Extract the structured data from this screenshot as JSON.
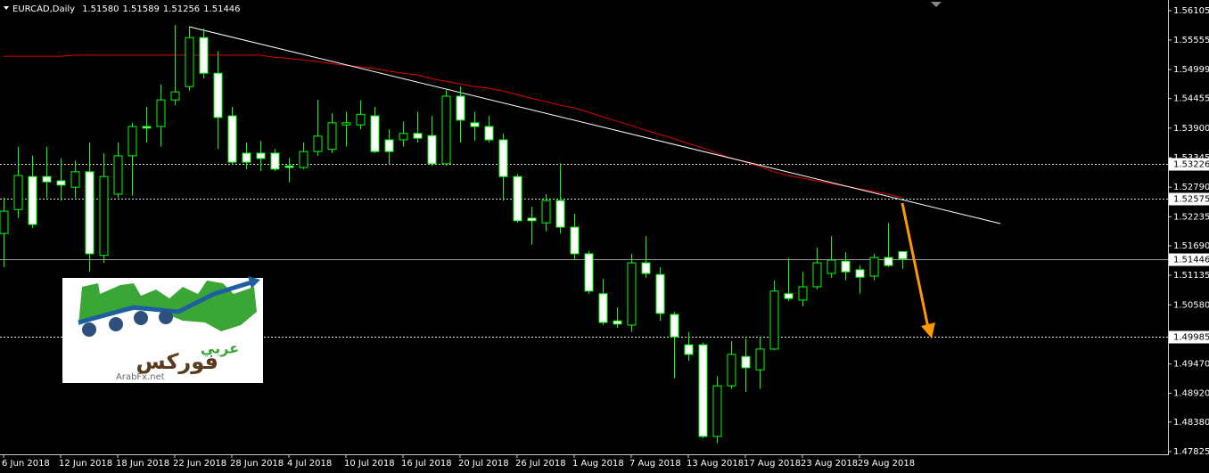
{
  "chart_data": {
    "type": "candlestick",
    "title": "EURCAD,Daily",
    "ohlc_labels": [
      "1.51580",
      "1.51589",
      "1.51256",
      "1.51446"
    ],
    "categories": [
      "6 Jun 2018",
      null,
      null,
      null,
      "12 Jun 2018",
      null,
      null,
      null,
      "18 Jun 2018",
      null,
      null,
      null,
      "22 Jun 2018",
      null,
      null,
      null,
      "28 Jun 2018",
      null,
      null,
      null,
      "4 Jul 2018",
      null,
      null,
      null,
      "10 Jul 2018",
      null,
      null,
      null,
      "16 Jul 2018",
      null,
      null,
      null,
      "20 Jul 2018",
      null,
      null,
      null,
      "26 Jul 2018",
      null,
      null,
      null,
      "1 Aug 2018",
      null,
      null,
      null,
      "7 Aug 2018",
      null,
      null,
      null,
      "13 Aug 2018",
      null,
      null,
      null,
      "17 Aug 2018",
      null,
      null,
      null,
      "23 Aug 2018",
      null,
      null,
      null,
      "29 Aug 2018",
      null,
      null,
      null
    ],
    "open": [
      1.5192,
      1.5237,
      1.5299,
      1.5299,
      1.5291,
      1.5279,
      1.5308,
      1.5151,
      1.5266,
      1.5338,
      1.5393,
      1.5393,
      1.5443,
      1.5468,
      1.556,
      1.5493,
      1.5413,
      1.5343,
      1.5343,
      1.5343,
      1.5319,
      1.5316,
      1.5346,
      1.535,
      1.5396,
      1.5396,
      1.5413,
      1.5368,
      1.5368,
      1.538,
      1.5376,
      1.5323,
      1.545,
      1.54,
      1.5393,
      1.5368,
      1.5299,
      1.5221,
      1.5212,
      1.5254,
      1.5204,
      1.5154,
      1.5079,
      1.5028,
      1.502,
      1.5137,
      1.5115,
      1.504,
      1.4983,
      1.4983,
      1.4811,
      1.4906,
      1.4961,
      1.4936,
      1.4975,
      1.5079,
      1.5067,
      1.5092,
      1.5117,
      1.514,
      1.5124,
      1.5112,
      1.5147,
      1.5158
    ],
    "high": [
      1.5259,
      1.5355,
      1.5338,
      1.5355,
      1.5333,
      1.5329,
      1.5363,
      1.5343,
      1.5363,
      1.54,
      1.543,
      1.5472,
      1.5584,
      1.558,
      1.5577,
      1.5534,
      1.543,
      1.5363,
      1.5366,
      1.5351,
      1.5334,
      1.5363,
      1.5443,
      1.5418,
      1.5421,
      1.5442,
      1.543,
      1.5388,
      1.5402,
      1.5421,
      1.5413,
      1.5463,
      1.5468,
      1.5421,
      1.5413,
      1.538,
      1.5304,
      1.5242,
      1.5266,
      1.5324,
      1.5229,
      1.5159,
      1.5107,
      1.5053,
      1.5154,
      1.5187,
      1.5129,
      1.5045,
      1.5007,
      1.4987,
      1.4924,
      1.499,
      1.4995,
      1.4998,
      1.5104,
      1.5146,
      1.512,
      1.5166,
      1.5187,
      1.5157,
      1.5132,
      1.5154,
      1.5212,
      1.51589
    ],
    "low": [
      1.5129,
      1.5221,
      1.5202,
      1.5259,
      1.5254,
      1.5259,
      1.512,
      1.5137,
      1.5259,
      1.5263,
      1.5363,
      1.5355,
      1.5433,
      1.546,
      1.5483,
      1.5351,
      1.5321,
      1.5313,
      1.5309,
      1.5309,
      1.5288,
      1.5313,
      1.5338,
      1.5343,
      1.5355,
      1.5388,
      1.5343,
      1.5321,
      1.5355,
      1.5363,
      1.5319,
      1.5319,
      1.5363,
      1.5366,
      1.5363,
      1.5254,
      1.5212,
      1.5171,
      1.5196,
      1.5192,
      1.5142,
      1.5079,
      1.502,
      1.5015,
      1.5007,
      1.5109,
      1.5028,
      1.492,
      1.4953,
      1.4808,
      1.4798,
      1.49,
      1.4895,
      1.49,
      1.4973,
      1.5065,
      1.5055,
      1.5087,
      1.5109,
      1.5104,
      1.5079,
      1.5104,
      1.5129,
      1.51256
    ],
    "close": [
      1.5234,
      1.5301,
      1.5209,
      1.5289,
      1.5283,
      1.5308,
      1.5154,
      1.5299,
      1.5338,
      1.5393,
      1.539,
      1.5443,
      1.5458,
      1.556,
      1.5493,
      1.541,
      1.5326,
      1.5326,
      1.5333,
      1.5313,
      1.5316,
      1.5346,
      1.5375,
      1.54,
      1.54,
      1.5416,
      1.5346,
      1.5346,
      1.538,
      1.5371,
      1.5323,
      1.545,
      1.5405,
      1.5393,
      1.5368,
      1.5299,
      1.5216,
      1.5216,
      1.5254,
      1.5204,
      1.5154,
      1.5084,
      1.5025,
      1.5022,
      1.5137,
      1.5117,
      1.5042,
      1.4998,
      1.4965,
      1.4811,
      1.4906,
      1.4965,
      1.494,
      1.4975,
      1.5084,
      1.507,
      1.5092,
      1.5137,
      1.5142,
      1.512,
      1.511,
      1.5147,
      1.5132,
      1.51446
    ],
    "overlay": {
      "color": "#e00000",
      "values": [
        1.5525,
        1.5525,
        1.5525,
        1.5525,
        1.5525,
        1.5527,
        1.5527,
        1.5527,
        1.5527,
        1.5527,
        1.5527,
        1.5527,
        1.5527,
        1.5527,
        1.5527,
        1.5527,
        1.5527,
        1.5527,
        1.5527,
        1.5523,
        1.5521,
        1.5518,
        1.5515,
        1.5511,
        1.5508,
        1.5505,
        1.5502,
        1.5497,
        1.5493,
        1.549,
        1.5483,
        1.5478,
        1.5473,
        1.5468,
        1.5465,
        1.546,
        1.5453,
        1.5446,
        1.544,
        1.5433,
        1.5428,
        1.542,
        1.5411,
        1.5403,
        1.5395,
        1.5386,
        1.5378,
        1.537,
        1.5361,
        1.5353,
        1.5343,
        1.5334,
        1.5326,
        1.5318,
        1.5308,
        1.5301,
        1.5296,
        1.5291,
        1.5286,
        1.5281,
        1.5276,
        1.5271,
        1.5266,
        1.5259
      ]
    },
    "up_color": "#000000",
    "down_color": "#ffffff",
    "wick_color": "#00ff00",
    "levels": [
      1.53226,
      1.52575,
      1.49985
    ],
    "bid": 1.51446,
    "ylim": [
      1.47774,
      1.56306
    ],
    "yticks": [
      1.56105,
      1.55555,
      1.54999,
      1.54455,
      {
        "value": 1.539,
        "label": "1.53900"
      },
      1.53345,
      {
        "value": 1.5279,
        "label": "1.52790"
      },
      1.52235,
      {
        "value": 1.5169,
        "label": "1.51690"
      },
      1.51135,
      {
        "value": 1.5058,
        "label": "1.50580"
      },
      {
        "value": 1.4947,
        "label": "1.49470"
      },
      {
        "value": 1.4892,
        "label": "1.48920"
      },
      {
        "value": 1.4838,
        "label": "1.48380"
      },
      1.47825
    ]
  },
  "logo": {
    "arabic_top": "عربي",
    "arabic_main": "فوركس",
    "url": "ArabFx.net"
  }
}
